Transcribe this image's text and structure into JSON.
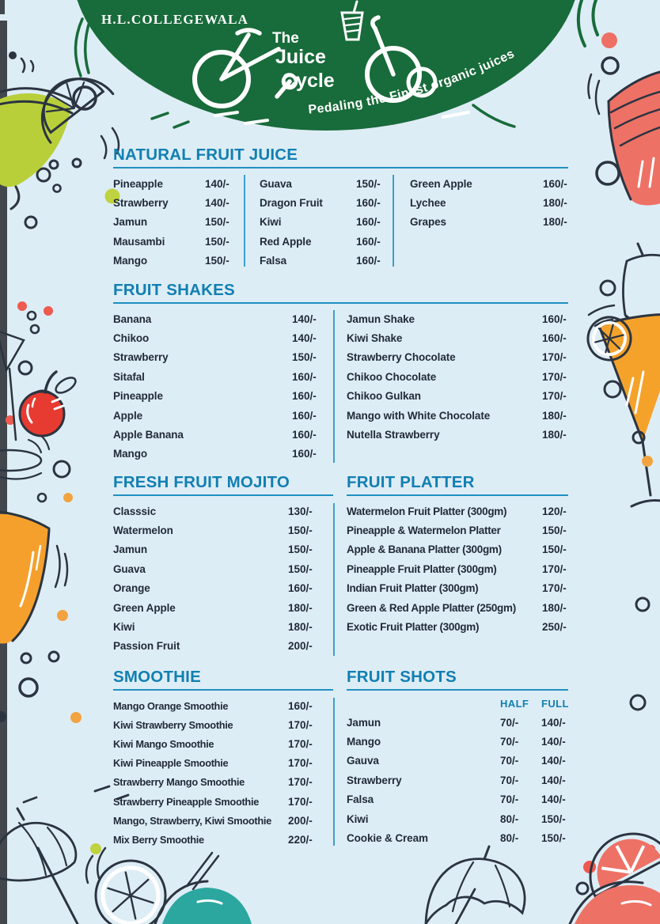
{
  "colors": {
    "background": "#ddedf5",
    "header_green": "#186b3a",
    "accent_blue": "#117fb2",
    "text_navy": "#222b39",
    "divider_blue": "#3d9fca",
    "coral": "#ee7166",
    "lime": "#bcd23e",
    "orange": "#f5a22b",
    "teal": "#2ba7a0",
    "apple_red": "#e73a30"
  },
  "header": {
    "brand": "H.L.COLLEGEWALA",
    "logo": {
      "line1": "The",
      "line2": "Juice",
      "line3": "Cycle"
    },
    "tagline": "Pedaling the Finest organic juices"
  },
  "menu": {
    "sections": [
      {
        "id": "natural-fruit-juice",
        "title": "NATURAL FRUIT JUICE",
        "columns": [
          [
            [
              "Pineapple",
              "140/-"
            ],
            [
              "Strawberry",
              "140/-"
            ],
            [
              "Jamun",
              "150/-"
            ],
            [
              "Mausambi",
              "150/-"
            ],
            [
              "Mango",
              "150/-"
            ]
          ],
          [
            [
              "Guava",
              "150/-"
            ],
            [
              "Dragon Fruit",
              "160/-"
            ],
            [
              "Kiwi",
              "160/-"
            ],
            [
              "Red Apple",
              "160/-"
            ],
            [
              "Falsa",
              "160/-"
            ]
          ],
          [
            [
              "Green Apple",
              "160/-"
            ],
            [
              "Lychee",
              "180/-"
            ],
            [
              "Grapes",
              "180/-"
            ]
          ]
        ]
      },
      {
        "id": "fruit-shakes",
        "title": "FRUIT SHAKES",
        "columns": [
          [
            [
              "Banana",
              "140/-"
            ],
            [
              "Chikoo",
              "140/-"
            ],
            [
              "Strawberry",
              "150/-"
            ],
            [
              "Sitafal",
              "160/-"
            ],
            [
              "Pineapple",
              "160/-"
            ],
            [
              "Apple",
              "160/-"
            ],
            [
              "Apple Banana",
              "160/-"
            ],
            [
              "Mango",
              "160/-"
            ]
          ],
          [
            [
              "Jamun Shake",
              "160/-"
            ],
            [
              "Kiwi Shake",
              "160/-"
            ],
            [
              "Strawberry Chocolate",
              "170/-"
            ],
            [
              "Chikoo Chocolate",
              "170/-"
            ],
            [
              "Chikoo Gulkan",
              "170/-"
            ],
            [
              "Mango with White Chocolate",
              "180/-"
            ],
            [
              "Nutella Strawberry",
              "180/-"
            ]
          ]
        ]
      },
      {
        "id": "fresh-fruit-mojito",
        "title": "FRESH FRUIT MOJITO",
        "items": [
          [
            "Classsic",
            "130/-"
          ],
          [
            "Watermelon",
            "150/-"
          ],
          [
            "Jamun",
            "150/-"
          ],
          [
            "Guava",
            "150/-"
          ],
          [
            "Orange",
            "160/-"
          ],
          [
            "Green Apple",
            "180/-"
          ],
          [
            "Kiwi",
            "180/-"
          ],
          [
            "Passion Fruit",
            "200/-"
          ]
        ]
      },
      {
        "id": "fruit-platter",
        "title": "FRUIT PLATTER",
        "items": [
          [
            "Watermelon Fruit Platter (300gm)",
            "120/-"
          ],
          [
            "Pineapple & Watermelon Platter",
            "150/-"
          ],
          [
            "Apple & Banana Platter (300gm)",
            "150/-"
          ],
          [
            "Pineapple Fruit Platter (300gm)",
            "170/-"
          ],
          [
            "Indian Fruit Platter (300gm)",
            "170/-"
          ],
          [
            "Green & Red Apple Platter (250gm)",
            "180/-"
          ],
          [
            "Exotic Fruit Platter (300gm)",
            "250/-"
          ]
        ]
      },
      {
        "id": "smoothie",
        "title": "SMOOTHIE",
        "items": [
          [
            "Mango Orange Smoothie",
            "160/-"
          ],
          [
            "Kiwi Strawberry Smoothie",
            "170/-"
          ],
          [
            "Kiwi Mango Smoothie",
            "170/-"
          ],
          [
            "Kiwi Pineapple Smoothie",
            "170/-"
          ],
          [
            "Strawberry Mango Smoothie",
            "170/-"
          ],
          [
            "Strawberry Pineapple Smoothie",
            "170/-"
          ],
          [
            "Mango, Strawberry, Kiwi Smoothie",
            "200/-"
          ],
          [
            "Mix Berry Smoothie",
            "220/-"
          ]
        ]
      },
      {
        "id": "fruit-shots",
        "title": "FRUIT SHOTS",
        "col_headers": [
          "HALF",
          "FULL"
        ],
        "items": [
          [
            "Jamun",
            "70/-",
            "140/-"
          ],
          [
            "Mango",
            "70/-",
            "140/-"
          ],
          [
            "Gauva",
            "70/-",
            "140/-"
          ],
          [
            "Strawberry",
            "70/-",
            "140/-"
          ],
          [
            "Falsa",
            "70/-",
            "140/-"
          ],
          [
            "Kiwi",
            "80/-",
            "150/-"
          ],
          [
            "Cookie & Cream",
            "80/-",
            "150/-"
          ]
        ]
      }
    ]
  }
}
